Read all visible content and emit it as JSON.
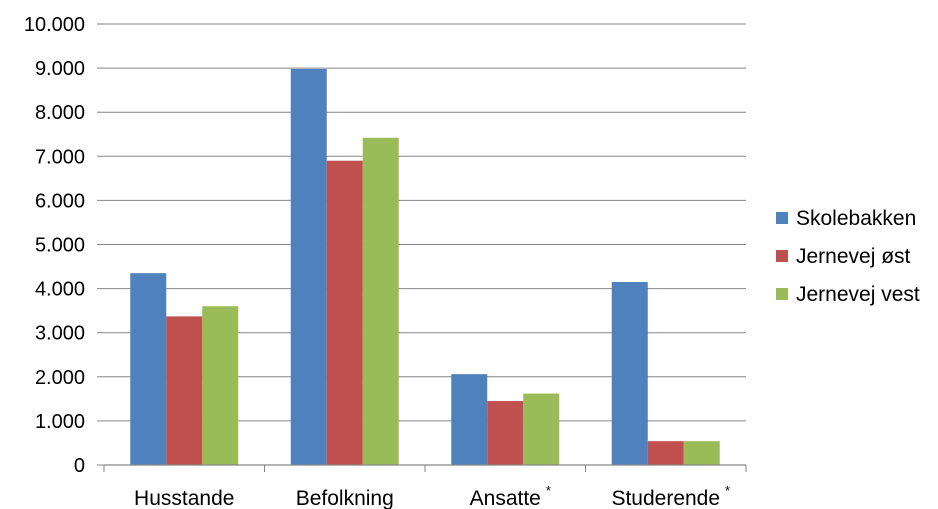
{
  "chart_data": {
    "type": "bar",
    "categories": [
      "Husstande",
      "Befolkning",
      "Ansatte",
      "Studerende"
    ],
    "category_marks": [
      "",
      "",
      "*",
      "*"
    ],
    "series": [
      {
        "name": "Skolebakken",
        "color": "#4F81BD",
        "values": [
          4350,
          8980,
          2060,
          4150
        ]
      },
      {
        "name": "Jernevej øst",
        "color": "#C0504D",
        "values": [
          3370,
          6900,
          1450,
          540
        ]
      },
      {
        "name": "Jernevej vest",
        "color": "#9BBB59",
        "values": [
          3600,
          7420,
          1620,
          540
        ]
      }
    ],
    "yticks": [
      "0",
      "1.000",
      "2.000",
      "3.000",
      "4.000",
      "5.000",
      "6.000",
      "7.000",
      "8.000",
      "9.000",
      "10.000"
    ],
    "ylim": [
      0,
      10000
    ],
    "grid": true,
    "legend_position": "right",
    "title": "",
    "xlabel": "",
    "ylabel": ""
  }
}
